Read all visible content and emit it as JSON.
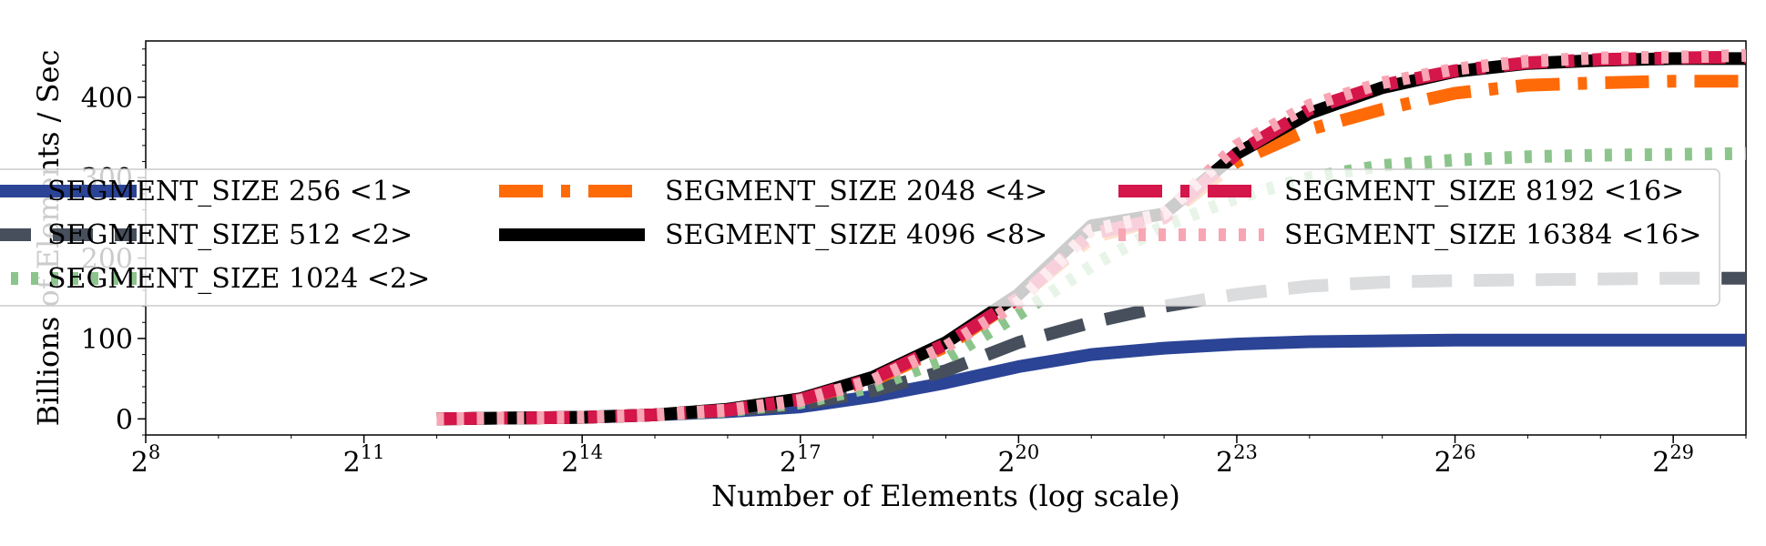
{
  "chart_data": {
    "type": "line",
    "title": "",
    "xlabel": "Number of Elements (log scale)",
    "ylabel": "Billions of Elements / Sec",
    "x_scale": "log2",
    "x_range_exponent": [
      8,
      30
    ],
    "x_ticks": [
      {
        "base": "2",
        "exp": "8",
        "value": 8
      },
      {
        "base": "2",
        "exp": "11",
        "value": 11
      },
      {
        "base": "2",
        "exp": "14",
        "value": 14
      },
      {
        "base": "2",
        "exp": "17",
        "value": 17
      },
      {
        "base": "2",
        "exp": "20",
        "value": 20
      },
      {
        "base": "2",
        "exp": "23",
        "value": 23
      },
      {
        "base": "2",
        "exp": "26",
        "value": 26
      },
      {
        "base": "2",
        "exp": "29",
        "value": 29
      }
    ],
    "ylim": [
      -20,
      470
    ],
    "y_ticks": [
      {
        "label": "0",
        "value": 0
      },
      {
        "label": "100",
        "value": 100
      },
      {
        "label": "200",
        "value": 200
      },
      {
        "label": "300",
        "value": 300
      },
      {
        "label": "400",
        "value": 400
      }
    ],
    "grid": false,
    "legend_placement": "center, spanning width, 3 columns",
    "x_exponent": [
      12,
      13,
      14,
      15,
      16,
      17,
      18,
      19,
      20,
      21,
      22,
      23,
      24,
      25,
      26,
      27,
      28,
      29,
      30
    ],
    "series": [
      {
        "name": "SEGMENT_SIZE 256 <1>",
        "color": "#2b4496",
        "linestyle": "solid",
        "values": [
          0,
          1,
          2,
          5,
          9,
          15,
          28,
          45,
          65,
          80,
          88,
          93,
          96,
          97,
          98,
          98,
          98,
          98,
          98
        ]
      },
      {
        "name": "SEGMENT_SIZE 512 <2>",
        "color": "#474f5c",
        "linestyle": "dashed",
        "values": [
          0,
          1,
          2,
          5,
          10,
          18,
          35,
          60,
          95,
          120,
          140,
          155,
          165,
          170,
          172,
          173,
          174,
          175,
          175
        ]
      },
      {
        "name": "SEGMENT_SIZE 1024 <2>",
        "color": "#8cc58c",
        "linestyle": "dotted",
        "values": [
          0,
          1,
          2,
          5,
          10,
          20,
          40,
          75,
          130,
          190,
          240,
          275,
          300,
          315,
          322,
          326,
          328,
          329,
          330
        ]
      },
      {
        "name": "SEGMENT_SIZE 2048 <4>",
        "color": "#ff6a08",
        "linestyle": "dashdot",
        "values": [
          0,
          1,
          2,
          5,
          11,
          24,
          48,
          90,
          150,
          225,
          250,
          320,
          360,
          385,
          405,
          415,
          418,
          420,
          420
        ]
      },
      {
        "name": "SEGMENT_SIZE 4096 <8>",
        "color": "#000000",
        "linestyle": "solid",
        "values": [
          0,
          1,
          2,
          5,
          12,
          25,
          52,
          95,
          155,
          240,
          255,
          330,
          380,
          412,
          432,
          442,
          446,
          448,
          448
        ]
      },
      {
        "name": "SEGMENT_SIZE 8192 <16>",
        "color": "#d4164a",
        "linestyle": "dashdot",
        "values": [
          0,
          1,
          2,
          5,
          11,
          24,
          50,
          93,
          150,
          230,
          250,
          330,
          385,
          415,
          433,
          443,
          447,
          449,
          450
        ]
      },
      {
        "name": "SEGMENT_SIZE 16384 <16>",
        "color": "#f8a5b4",
        "linestyle": "dotted",
        "values": [
          0,
          1,
          2,
          5,
          11,
          23,
          48,
          90,
          145,
          235,
          255,
          340,
          390,
          418,
          435,
          445,
          449,
          450,
          452
        ]
      }
    ]
  }
}
